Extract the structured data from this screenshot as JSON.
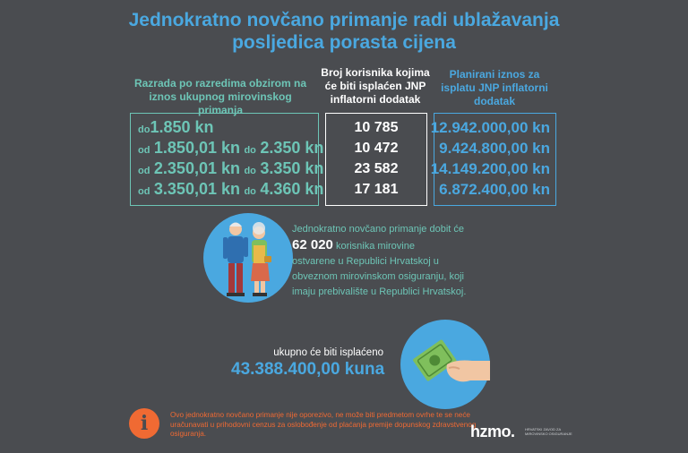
{
  "title_line1": "Jednokratno novčano primanje radi ublažavanja",
  "title_line2": "posljedica porasta cijena",
  "headers": {
    "col1": "Razrada po razredima obzirom na iznos ukupnog mirovinskog primanja",
    "col2": "Broj korisnika kojima će biti isplaćen JNP inflatorni dodatak",
    "col3": "Planirani iznos za isplatu JNP inflatorni dodatak"
  },
  "ranges": [
    {
      "from_word": "do",
      "from": "1.850 kn",
      "to_word": "",
      "to": ""
    },
    {
      "from_word": "od",
      "from": "1.850,01 kn",
      "to_word": "do",
      "to": "2.350 kn"
    },
    {
      "from_word": "od",
      "from": "2.350,01 kn",
      "to_word": "do",
      "to": "3.350 kn"
    },
    {
      "from_word": "od",
      "from": "3.350,01 kn",
      "to_word": "do",
      "to": "4.360 kn"
    }
  ],
  "counts": [
    "10 785",
    "10 472",
    "23 582",
    "17 181"
  ],
  "amounts": [
    "12.942.000,00 kn",
    "9.424.800,00 kn",
    "14.149.200,00 kn",
    "6.872.400,00 kn"
  ],
  "info": {
    "line1": "Jednokratno novčano primanje dobit će",
    "big_number": "62 020",
    "line2_rest": "korisnika mirovine",
    "line3": "ostvarene u Republici Hrvatskoj u",
    "line4": "obveznom mirovinskom osiguranju, koji",
    "line5": "imaju prebivalište u Republici Hrvatskoj."
  },
  "total": {
    "label": "ukupno će biti isplaćeno",
    "value": "43.388.400,00 kuna"
  },
  "note": {
    "icon": "info-icon",
    "text": "Ovo jednokratno novčano primanje nije oporezivo, ne može biti predmetom ovrhe te se neće uračunavati u prihodovni cenzus za oslobođenje od plaćanja premije dopunskog zdravstvenog osiguranja."
  },
  "logo": {
    "text": "hzmo.",
    "subtitle": "HRVATSKI ZAVOD ZA MIROVINSKO OSIGURANJE"
  },
  "colors": {
    "background": "#4a4c50",
    "blue": "#4aa8e0",
    "teal": "#6dc5b6",
    "orange": "#f06a33"
  }
}
